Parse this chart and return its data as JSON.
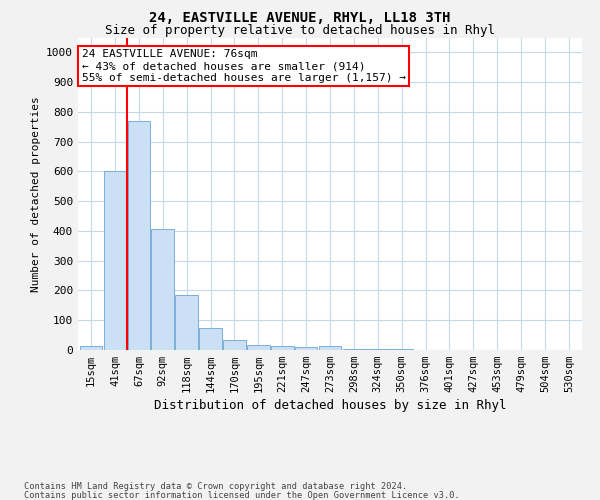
{
  "title1": "24, EASTVILLE AVENUE, RHYL, LL18 3TH",
  "title2": "Size of property relative to detached houses in Rhyl",
  "xlabel": "Distribution of detached houses by size in Rhyl",
  "ylabel": "Number of detached properties",
  "bar_labels": [
    "15sqm",
    "41sqm",
    "67sqm",
    "92sqm",
    "118sqm",
    "144sqm",
    "170sqm",
    "195sqm",
    "221sqm",
    "247sqm",
    "273sqm",
    "298sqm",
    "324sqm",
    "350sqm",
    "376sqm",
    "401sqm",
    "427sqm",
    "453sqm",
    "479sqm",
    "504sqm",
    "530sqm"
  ],
  "bar_values": [
    15,
    600,
    770,
    405,
    185,
    75,
    35,
    18,
    12,
    10,
    12,
    5,
    3,
    2,
    1,
    0,
    0,
    0,
    0,
    0,
    0
  ],
  "bar_color": "#cce0f5",
  "bar_edge_color": "#7ab0d8",
  "annotation_line1": "24 EASTVILLE AVENUE: 76sqm",
  "annotation_line2": "← 43% of detached houses are smaller (914)",
  "annotation_line3": "55% of semi-detached houses are larger (1,157) →",
  "vline_color": "red",
  "vline_x": 1.5,
  "ylim": [
    0,
    1050
  ],
  "yticks": [
    0,
    100,
    200,
    300,
    400,
    500,
    600,
    700,
    800,
    900,
    1000
  ],
  "footer1": "Contains HM Land Registry data © Crown copyright and database right 2024.",
  "footer2": "Contains public sector information licensed under the Open Government Licence v3.0.",
  "bg_color": "#f2f2f2",
  "plot_bg_color": "white",
  "grid_color": "#c8d8ec"
}
